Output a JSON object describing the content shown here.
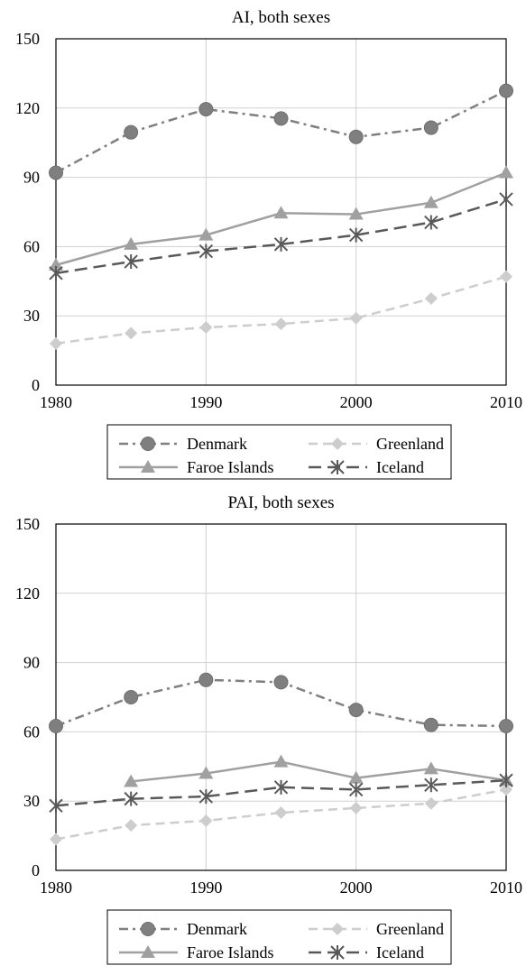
{
  "chart_data": [
    {
      "type": "line",
      "title": "AI, both sexes",
      "xlabel": "",
      "ylabel": "",
      "x_ticks": [
        1980,
        1990,
        2000,
        2010
      ],
      "y_ticks": [
        0,
        30,
        60,
        90,
        120,
        150
      ],
      "xlim": [
        1980,
        2010
      ],
      "ylim": [
        0,
        150
      ],
      "grid": "major",
      "legend_position": "bottom",
      "series": [
        {
          "name": "Denmark",
          "x": [
            1980,
            1985,
            1990,
            1995,
            2000,
            2005,
            2010
          ],
          "values": [
            92,
            109.5,
            119.5,
            115.5,
            107.5,
            111.5,
            127.5
          ],
          "color": "#7f7f7f",
          "marker": "circle",
          "dash": "dashdot"
        },
        {
          "name": "Greenland",
          "x": [
            1980,
            1985,
            1990,
            1995,
            2000,
            2005,
            2010
          ],
          "values": [
            18,
            22.5,
            25,
            26.5,
            29,
            37.5,
            47
          ],
          "color": "#cdcdcd",
          "marker": "diamond",
          "dash": "dash"
        },
        {
          "name": "Faroe Islands",
          "x": [
            1980,
            1985,
            1990,
            1995,
            2000,
            2005,
            2010
          ],
          "values": [
            52,
            61,
            65,
            74.5,
            74,
            79,
            92
          ],
          "color": "#a0a0a0",
          "marker": "triangle",
          "dash": "solid"
        },
        {
          "name": "Iceland",
          "x": [
            1980,
            1985,
            1990,
            1995,
            2000,
            2005,
            2010
          ],
          "values": [
            48.5,
            53.5,
            58,
            61,
            65,
            70.5,
            80.5
          ],
          "color": "#595959",
          "marker": "asterisk",
          "dash": "longdash"
        }
      ]
    },
    {
      "type": "line",
      "title": "PAI, both sexes",
      "xlabel": "",
      "ylabel": "",
      "x_ticks": [
        1980,
        1990,
        2000,
        2010
      ],
      "y_ticks": [
        0,
        30,
        60,
        90,
        120,
        150
      ],
      "xlim": [
        1980,
        2010
      ],
      "ylim": [
        0,
        150
      ],
      "grid": "major",
      "legend_position": "bottom",
      "series": [
        {
          "name": "Denmark",
          "x": [
            1980,
            1985,
            1990,
            1995,
            2000,
            2005,
            2010
          ],
          "values": [
            62.5,
            75,
            82.5,
            81.5,
            69.5,
            63,
            62.5
          ],
          "color": "#7f7f7f",
          "marker": "circle",
          "dash": "dashdot"
        },
        {
          "name": "Greenland",
          "x": [
            1980,
            1985,
            1990,
            1995,
            2000,
            2005,
            2010
          ],
          "values": [
            13.5,
            19.5,
            21.5,
            25,
            27,
            29,
            35
          ],
          "color": "#cdcdcd",
          "marker": "diamond",
          "dash": "dash"
        },
        {
          "name": "Faroe Islands",
          "x": [
            1985,
            1990,
            1995,
            2000,
            2005,
            2010
          ],
          "values": [
            38.5,
            42,
            47,
            40,
            44,
            39
          ],
          "color": "#a0a0a0",
          "marker": "triangle",
          "dash": "solid"
        },
        {
          "name": "Iceland",
          "x": [
            1980,
            1985,
            1990,
            1995,
            2000,
            2005,
            2010
          ],
          "values": [
            28,
            31,
            32,
            36,
            35,
            37,
            39
          ],
          "color": "#595959",
          "marker": "asterisk",
          "dash": "longdash"
        }
      ]
    }
  ]
}
